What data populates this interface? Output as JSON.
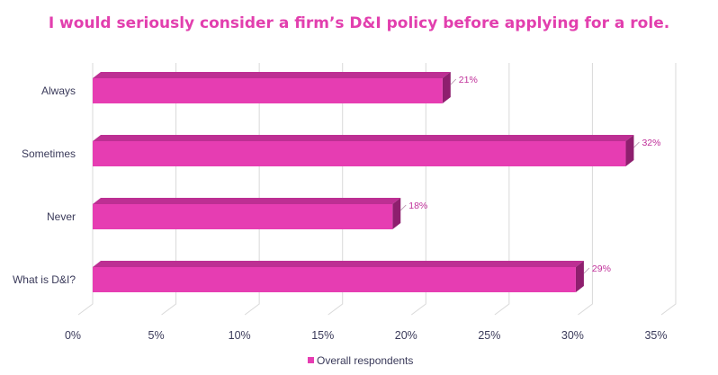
{
  "chart_data": {
    "type": "bar",
    "orientation": "horizontal",
    "style": "3d",
    "title": "I would seriously consider a firm’s D&I policy before applying for a role.",
    "categories": [
      "Always",
      "Sometimes",
      "Never",
      "What is D&I?"
    ],
    "series": [
      {
        "name": "Overall respondents",
        "values": [
          21,
          32,
          18,
          29
        ],
        "color": "#e63db2"
      }
    ],
    "data_labels": [
      "21%",
      "32%",
      "18%",
      "29%"
    ],
    "xlim": [
      0,
      35
    ],
    "xticks": [
      "0%",
      "5%",
      "10%",
      "15%",
      "20%",
      "25%",
      "30%",
      "35%"
    ],
    "grid": true,
    "legend_position": "bottom"
  },
  "colors": {
    "title": "#e23fae",
    "bar_front": "#e63db2",
    "bar_top": "#bd2f93",
    "bar_side": "#8e1f6e",
    "grid": "#d9d9d9",
    "text": "#3a3a5a"
  }
}
